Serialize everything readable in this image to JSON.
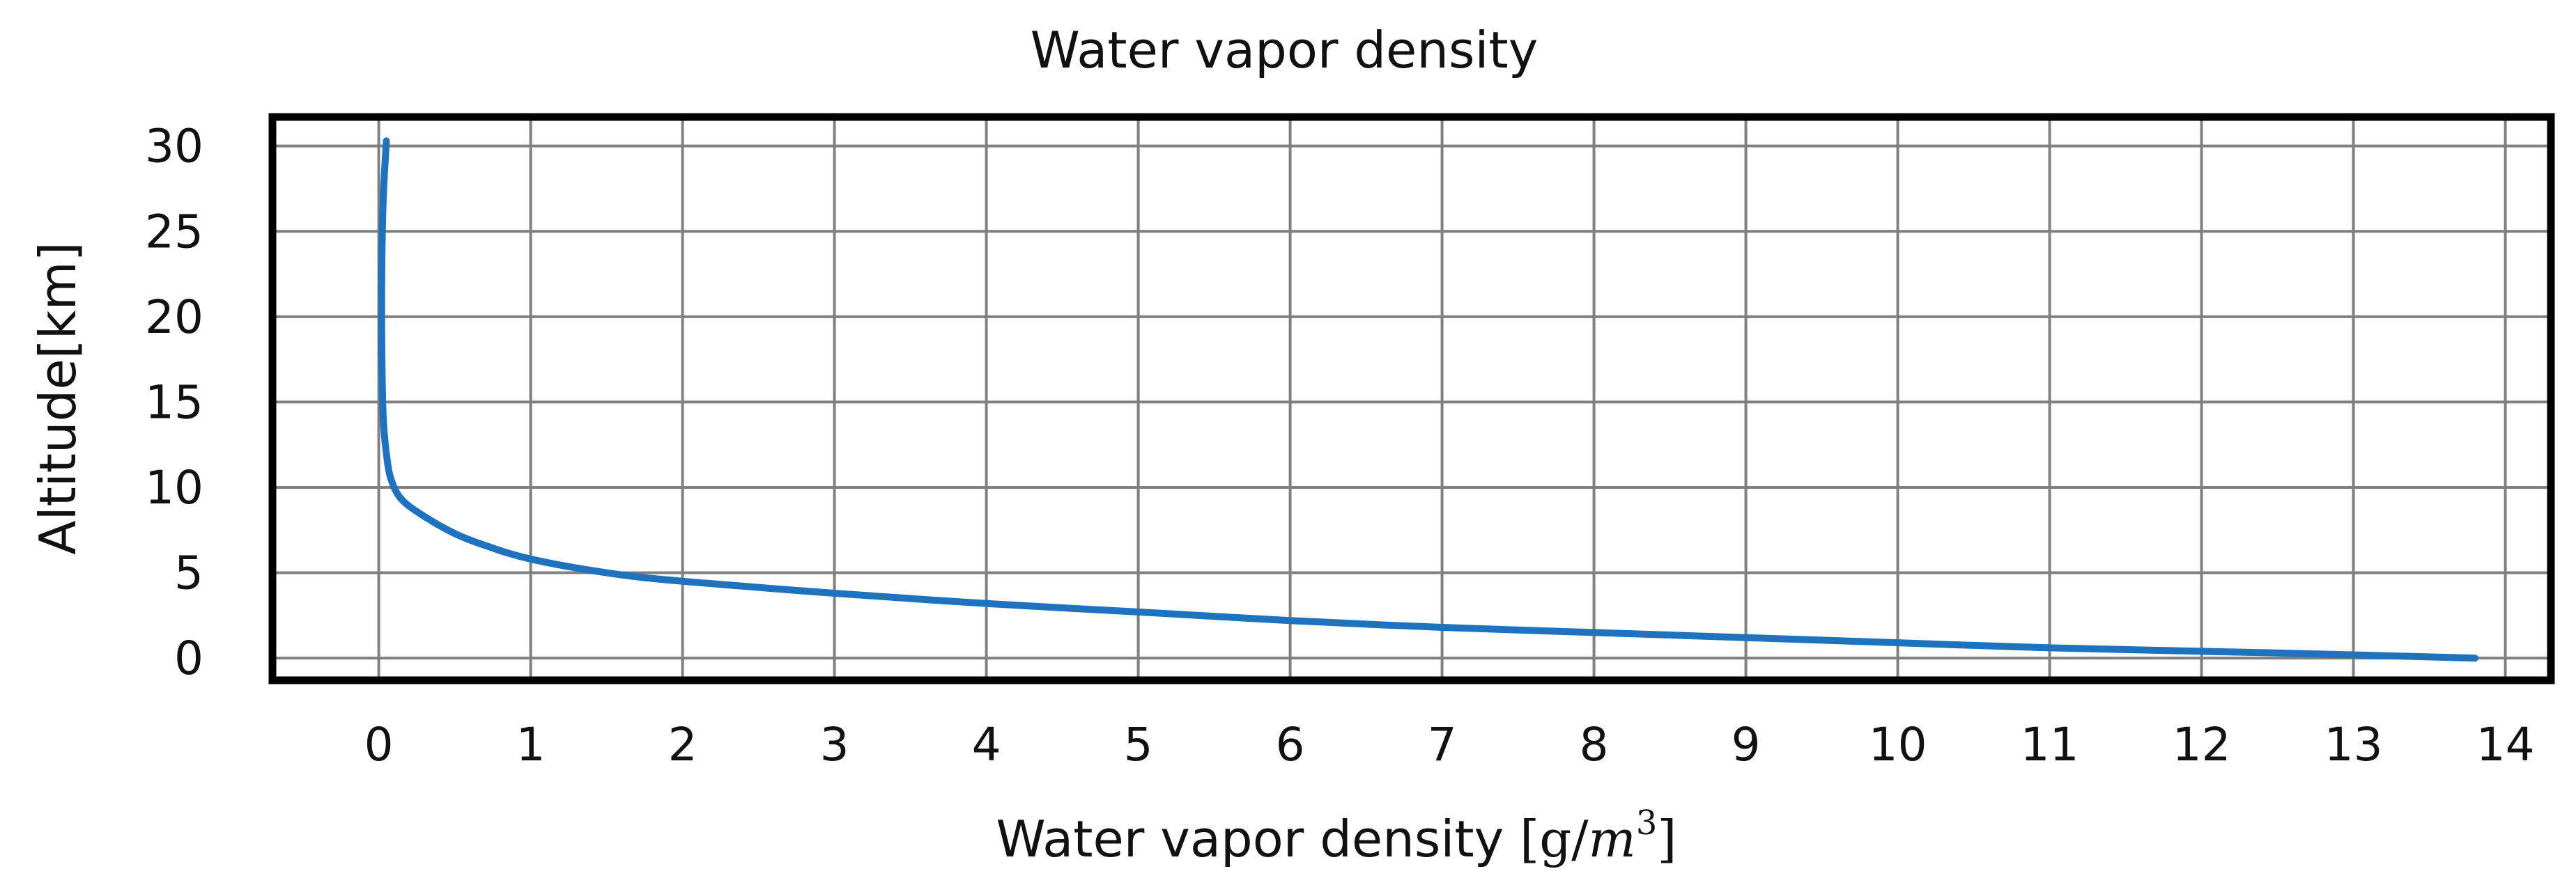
{
  "chart_data": {
    "type": "line",
    "title": "Water vapor density",
    "xlabel": {
      "prefix": "Water vapor density ",
      "unit_open": "[g/",
      "unit_var": "m",
      "unit_exp": "3",
      "unit_close": "]"
    },
    "ylabel": "Altitude[km]",
    "xlim": [
      -0.7,
      14.3
    ],
    "ylim": [
      -1.3,
      31.7
    ],
    "xticks": [
      0,
      1,
      2,
      3,
      4,
      5,
      6,
      7,
      8,
      9,
      10,
      11,
      12,
      13,
      14
    ],
    "yticks": [
      0,
      5,
      10,
      15,
      20,
      25,
      30
    ],
    "grid": true,
    "colors": {
      "line": "#1f72be",
      "grid": "#808080",
      "frame": "#000000"
    },
    "series": [
      {
        "x": [
          13.8,
          12.5,
          11.0,
          10.0,
          9.0,
          8.0,
          7.0,
          6.0,
          5.0,
          4.0,
          3.0,
          2.0,
          1.5,
          1.0,
          0.7,
          0.5,
          0.3,
          0.15,
          0.08,
          0.05,
          0.03,
          0.02,
          0.02,
          0.03,
          0.05
        ],
        "y": [
          0.0,
          0.3,
          0.6,
          0.9,
          1.2,
          1.5,
          1.8,
          2.2,
          2.7,
          3.2,
          3.8,
          4.5,
          5.0,
          5.8,
          6.6,
          7.3,
          8.3,
          9.3,
          10.5,
          12.0,
          14.0,
          18.0,
          23.0,
          27.0,
          30.3
        ]
      }
    ]
  }
}
